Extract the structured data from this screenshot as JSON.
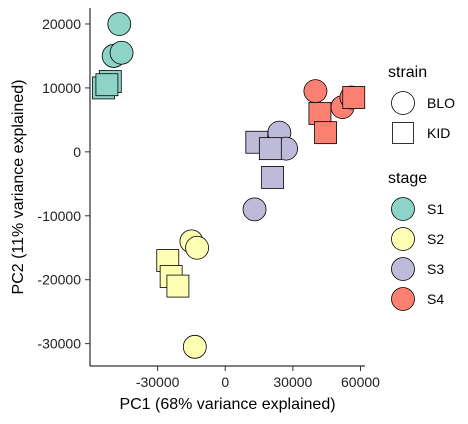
{
  "chart_data": {
    "type": "scatter",
    "xlabel": "PC1 (68% variance explained)",
    "ylabel": "PC2 (11% variance explained)",
    "xlim": [
      -60000,
      62000
    ],
    "ylim": [
      -33500,
      22500
    ],
    "xticks": [
      {
        "value": -30000,
        "label": "-30000"
      },
      {
        "value": 0,
        "label": "0"
      },
      {
        "value": 30000,
        "label": "30000"
      },
      {
        "value": 60000,
        "label": "60000"
      }
    ],
    "yticks": [
      {
        "value": 20000,
        "label": "20000"
      },
      {
        "value": 10000,
        "label": "10000"
      },
      {
        "value": 0,
        "label": "0"
      },
      {
        "value": -10000,
        "label": "-10000"
      },
      {
        "value": -20000,
        "label": "-20000"
      },
      {
        "value": -30000,
        "label": "-30000"
      }
    ],
    "grid": false,
    "legend_position": "right",
    "stage_colors": {
      "S1": "#8DD3C7",
      "S2": "#FFFFB3",
      "S3": "#BEBADA",
      "S4": "#FB8072"
    },
    "legends": [
      {
        "title": "strain",
        "items": [
          {
            "label": "BLO",
            "shape": "circle"
          },
          {
            "label": "KID",
            "shape": "square"
          }
        ]
      },
      {
        "title": "stage",
        "items": [
          {
            "label": "S1",
            "color": "#8DD3C7"
          },
          {
            "label": "S2",
            "color": "#FFFFB3"
          },
          {
            "label": "S3",
            "color": "#BEBADA"
          },
          {
            "label": "S4",
            "color": "#FB8072"
          }
        ]
      }
    ],
    "points": [
      {
        "x": -47000,
        "y": 20000,
        "strain": "BLO",
        "stage": "S1"
      },
      {
        "x": -49500,
        "y": 15000,
        "strain": "BLO",
        "stage": "S1"
      },
      {
        "x": -46000,
        "y": 15500,
        "strain": "BLO",
        "stage": "S1"
      },
      {
        "x": -51000,
        "y": 11000,
        "strain": "KID",
        "stage": "S1"
      },
      {
        "x": -54000,
        "y": 10000,
        "strain": "KID",
        "stage": "S1"
      },
      {
        "x": -52500,
        "y": 10500,
        "strain": "KID",
        "stage": "S1"
      },
      {
        "x": -15000,
        "y": -14000,
        "strain": "BLO",
        "stage": "S2"
      },
      {
        "x": -12500,
        "y": -15000,
        "strain": "BLO",
        "stage": "S2"
      },
      {
        "x": -13500,
        "y": -30500,
        "strain": "BLO",
        "stage": "S2"
      },
      {
        "x": -25500,
        "y": -17000,
        "strain": "KID",
        "stage": "S2"
      },
      {
        "x": -24000,
        "y": -19500,
        "strain": "KID",
        "stage": "S2"
      },
      {
        "x": -21000,
        "y": -21000,
        "strain": "KID",
        "stage": "S2"
      },
      {
        "x": 24000,
        "y": 3000,
        "strain": "BLO",
        "stage": "S3"
      },
      {
        "x": 27000,
        "y": 500,
        "strain": "BLO",
        "stage": "S3"
      },
      {
        "x": 13000,
        "y": -9000,
        "strain": "BLO",
        "stage": "S3"
      },
      {
        "x": 14000,
        "y": 1500,
        "strain": "KID",
        "stage": "S3"
      },
      {
        "x": 20000,
        "y": 500,
        "strain": "KID",
        "stage": "S3"
      },
      {
        "x": 21000,
        "y": -4000,
        "strain": "KID",
        "stage": "S3"
      },
      {
        "x": 40000,
        "y": 9500,
        "strain": "BLO",
        "stage": "S4"
      },
      {
        "x": 52000,
        "y": 7000,
        "strain": "BLO",
        "stage": "S4"
      },
      {
        "x": 56000,
        "y": 8500,
        "strain": "BLO",
        "stage": "S4"
      },
      {
        "x": 42000,
        "y": 6000,
        "strain": "KID",
        "stage": "S4"
      },
      {
        "x": 44500,
        "y": 3000,
        "strain": "KID",
        "stage": "S4"
      },
      {
        "x": 57000,
        "y": 8500,
        "strain": "KID",
        "stage": "S4"
      }
    ]
  }
}
